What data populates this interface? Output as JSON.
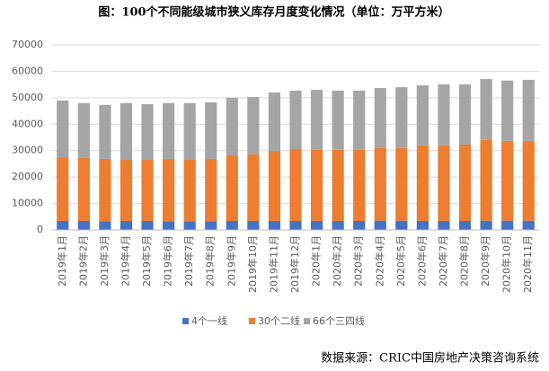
{
  "chart_data": {
    "type": "stacked_bar",
    "title": "图：100个不同能级城市狭义库存月度变化情况（单位：万平方米）",
    "source": "数据来源：CRIC中国房地产决策咨询系统",
    "categories": [
      "2019年1月",
      "2019年2月",
      "2019年3月",
      "2019年4月",
      "2019年5月",
      "2019年6月",
      "2019年7月",
      "2019年8月",
      "2019年9月",
      "2019年10月",
      "2019年11月",
      "2019年12月",
      "2020年1月",
      "2020年2月",
      "2020年3月",
      "2020年4月",
      "2020年5月",
      "2020年6月",
      "2020年7月",
      "2020年8月",
      "2020年9月",
      "2020年10月",
      "2020年11月"
    ],
    "series": [
      {
        "name": "4个一线",
        "color": "#4472c4",
        "values": [
          3400,
          3400,
          3300,
          3400,
          3400,
          3300,
          3300,
          3300,
          3400,
          3400,
          3400,
          3400,
          3400,
          3400,
          3400,
          3500,
          3500,
          3400,
          3400,
          3400,
          3500,
          3500,
          3500
        ]
      },
      {
        "name": "30个二线",
        "color": "#ed7d31",
        "values": [
          24100,
          23800,
          23600,
          23100,
          23100,
          23600,
          23200,
          23600,
          24800,
          25200,
          26500,
          27200,
          26900,
          26900,
          26900,
          27500,
          27500,
          28600,
          28600,
          28900,
          30500,
          30200,
          30200
        ]
      },
      {
        "name": "66个三四线",
        "color": "#a5a5a5",
        "values": [
          21500,
          20800,
          20400,
          21500,
          21100,
          21100,
          21500,
          21400,
          21800,
          21700,
          22100,
          22100,
          22700,
          22400,
          22400,
          22700,
          23000,
          22700,
          23100,
          22800,
          23100,
          22800,
          23100
        ]
      }
    ],
    "ylim": [
      0,
      70000
    ],
    "yticks": [
      0,
      10000,
      20000,
      30000,
      40000,
      50000,
      60000,
      70000
    ],
    "grid": true
  }
}
